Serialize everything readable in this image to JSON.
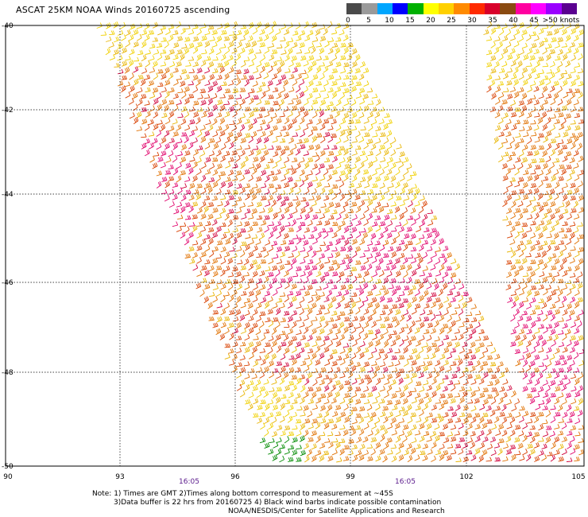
{
  "title": "ASCAT 25KM NOAA Winds 20160725 ascending",
  "legend": {
    "colors": [
      "#4a4a4a",
      "#9a9a9a",
      "#00a6ff",
      "#0000ff",
      "#00b000",
      "#ffff00",
      "#ffd000",
      "#ff8a00",
      "#ff2a00",
      "#d8002a",
      "#8a4a10",
      "#ff00a0",
      "#ff00ff",
      "#9a00ff",
      "#5a0090"
    ],
    "labels": [
      "0",
      "5",
      "10",
      "15",
      "20",
      "25",
      "30",
      "35",
      "40",
      "45",
      ">50 knots"
    ]
  },
  "axes": {
    "lat_labels": [
      "-40",
      "-42",
      "-44",
      "-46",
      "-48",
      "-50"
    ],
    "lon_labels": [
      "90",
      "93",
      "96",
      "99",
      "102",
      "105"
    ]
  },
  "times": [
    "16:05",
    "16:05"
  ],
  "notes": {
    "line1": "Note: 1) Times are GMT 2)Times along bottom correspond to measurement at ~45S",
    "line2": "3)Data buffer is 22 hrs from 20160725 4) Black wind barbs indicate possible contamination",
    "line3": "NOAA/NESDIS/Center for Satellite Applications and Research"
  },
  "palette": {
    "yellow": "#f0d000",
    "gold": "#e8b400",
    "orange": "#e07000",
    "red_orange": "#d84000",
    "crimson": "#d0003a",
    "magenta": "#e0006a",
    "green": "#008a00"
  }
}
